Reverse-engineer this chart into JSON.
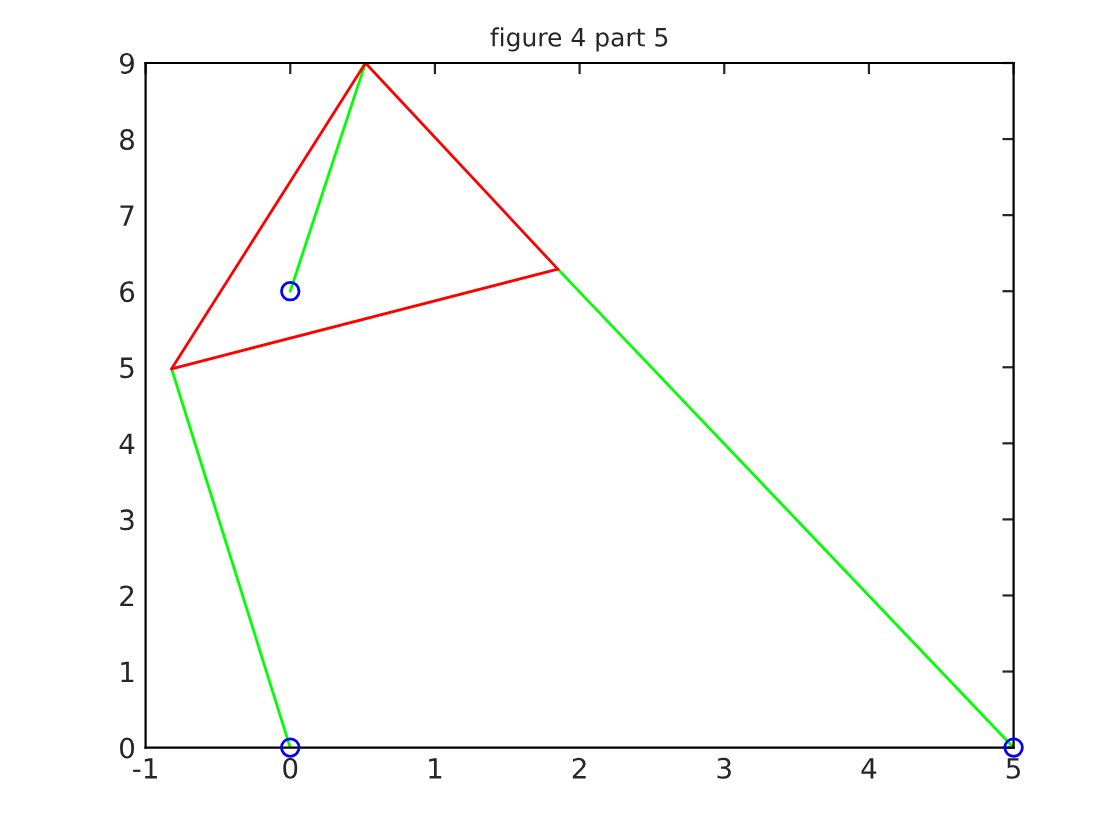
{
  "chart_data": {
    "type": "line",
    "title": "figure 4 part 5",
    "xlim": [
      -1,
      5
    ],
    "ylim": [
      0,
      9
    ],
    "xticks": [
      -1,
      0,
      1,
      2,
      3,
      4,
      5
    ],
    "yticks": [
      0,
      1,
      2,
      3,
      4,
      5,
      6,
      7,
      8,
      9
    ],
    "grid": false,
    "legend": false,
    "series": [
      {
        "color": "#00ff00",
        "x": [
          0,
          -0.82
        ],
        "values": [
          0,
          4.98
        ]
      },
      {
        "color": "#00ff00",
        "x": [
          0,
          0.52
        ],
        "values": [
          6,
          9
        ]
      },
      {
        "color": "#00ff00",
        "x": [
          1.85,
          5
        ],
        "values": [
          6.29,
          0
        ]
      },
      {
        "color": "#ff0000",
        "x": [
          -0.82,
          0.52
        ],
        "values": [
          4.98,
          9
        ]
      },
      {
        "color": "#ff0000",
        "x": [
          0.52,
          1.85
        ],
        "values": [
          9,
          6.29
        ]
      },
      {
        "color": "#ff0000",
        "x": [
          -0.82,
          1.85
        ],
        "values": [
          4.98,
          6.29
        ]
      },
      {
        "type": "scatter",
        "marker": "circle",
        "color": "#0000ff",
        "x": [
          0,
          0,
          5
        ],
        "values": [
          0,
          6,
          0
        ]
      }
    ]
  }
}
